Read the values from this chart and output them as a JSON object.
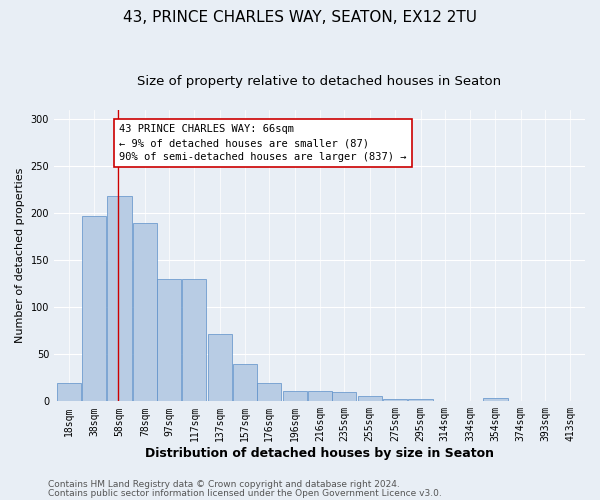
{
  "title1": "43, PRINCE CHARLES WAY, SEATON, EX12 2TU",
  "title2": "Size of property relative to detached houses in Seaton",
  "xlabel": "Distribution of detached houses by size in Seaton",
  "ylabel": "Number of detached properties",
  "bar_labels": [
    "18sqm",
    "38sqm",
    "58sqm",
    "78sqm",
    "97sqm",
    "117sqm",
    "137sqm",
    "157sqm",
    "176sqm",
    "196sqm",
    "216sqm",
    "235sqm",
    "255sqm",
    "275sqm",
    "295sqm",
    "314sqm",
    "334sqm",
    "354sqm",
    "374sqm",
    "393sqm",
    "413sqm"
  ],
  "bar_values": [
    19,
    197,
    218,
    190,
    130,
    130,
    72,
    40,
    20,
    11,
    11,
    10,
    6,
    3,
    2,
    0,
    0,
    4,
    0,
    0,
    0
  ],
  "bar_color": "#b8cce4",
  "bar_edge_color": "#5b8fc9",
  "background_color": "#e8eef5",
  "grid_color": "#ffffff",
  "annotation_text": "43 PRINCE CHARLES WAY: 66sqm\n← 9% of detached houses are smaller (87)\n90% of semi-detached houses are larger (837) →",
  "annotation_box_color": "#ffffff",
  "annotation_box_edge": "#cc0000",
  "vline_x_idx": 2,
  "vline_color": "#cc0000",
  "ylim": [
    0,
    310
  ],
  "yticks": [
    0,
    50,
    100,
    150,
    200,
    250,
    300
  ],
  "footer1": "Contains HM Land Registry data © Crown copyright and database right 2024.",
  "footer2": "Contains public sector information licensed under the Open Government Licence v3.0.",
  "title1_fontsize": 11,
  "title2_fontsize": 9.5,
  "xlabel_fontsize": 9,
  "ylabel_fontsize": 8,
  "tick_fontsize": 7,
  "annotation_fontsize": 7.5,
  "footer_fontsize": 6.5,
  "bin_starts": [
    18,
    38,
    58,
    78,
    97,
    117,
    137,
    157,
    176,
    196,
    216,
    235,
    255,
    275,
    295,
    314,
    334,
    354,
    374,
    393,
    413
  ],
  "bin_width": 19
}
